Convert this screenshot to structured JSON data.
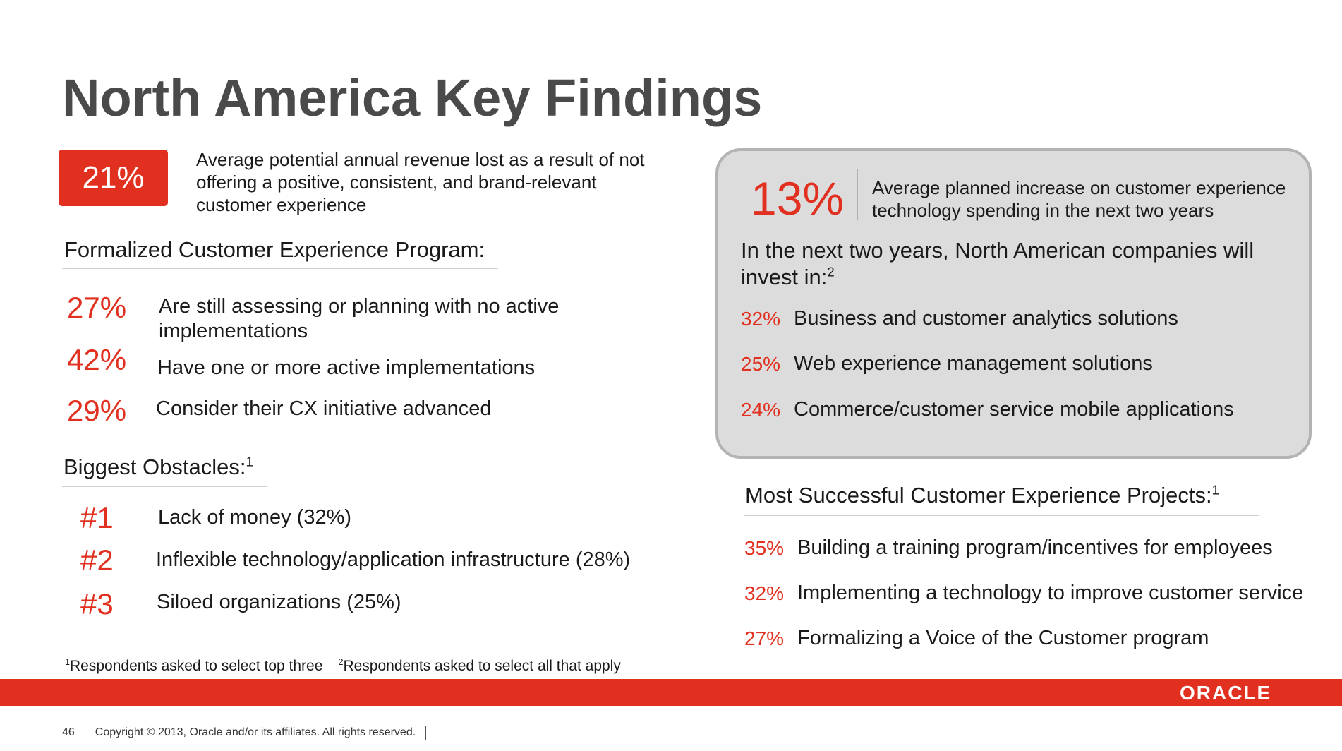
{
  "title": "North America Key Findings",
  "headline": {
    "pct": "21%",
    "text": "Average potential annual revenue lost as a result of not offering a positive, consistent, and brand-relevant customer experience"
  },
  "formalized": {
    "heading": "Formalized Customer Experience Program:",
    "items": [
      {
        "pct": "27%",
        "text": "Are still assessing or planning with no active implementations"
      },
      {
        "pct": "42%",
        "text": "Have one or more active implementations"
      },
      {
        "pct": "29%",
        "text": "Consider their CX initiative advanced"
      }
    ]
  },
  "obstacles": {
    "heading": "Biggest Obstacles:",
    "heading_sup": "1",
    "items": [
      {
        "rank": "#1",
        "text": "Lack of money (32%)"
      },
      {
        "rank": "#2",
        "text": "Inflexible technology/application infrastructure (28%)"
      },
      {
        "rank": "#3",
        "text": "Siloed organizations (25%)"
      }
    ]
  },
  "footnotes": {
    "one_sup": "1",
    "one": "Respondents asked to select top three",
    "two_sup": "2",
    "two": "Respondents asked to select all that apply"
  },
  "panel": {
    "pct": "13%",
    "pct_text": "Average planned increase on customer experience technology spending in the next two years",
    "intro": "In the next two years, North American companies will invest in:",
    "intro_sup": "2",
    "items": [
      {
        "pct": "32%",
        "text": "Business and customer analytics solutions"
      },
      {
        "pct": "25%",
        "text": "Web experience management solutions"
      },
      {
        "pct": "24%",
        "text": "Commerce/customer service mobile applications"
      }
    ]
  },
  "projects": {
    "heading": "Most Successful Customer Experience Projects:",
    "heading_sup": "1",
    "items": [
      {
        "pct": "35%",
        "text": "Building a training program/incentives for employees"
      },
      {
        "pct": "32%",
        "text": "Implementing a technology to improve customer service"
      },
      {
        "pct": "27%",
        "text": "Formalizing a Voice of the Customer program"
      }
    ]
  },
  "footer": {
    "logo": "ORACLE",
    "page_number": "46",
    "copyright": "Copyright © 2013, Oracle and/or its affiliates. All rights reserved."
  },
  "colors": {
    "accent": "#e1301f",
    "title": "#4a4a4a",
    "panel_bg": "#dcdcdc"
  }
}
